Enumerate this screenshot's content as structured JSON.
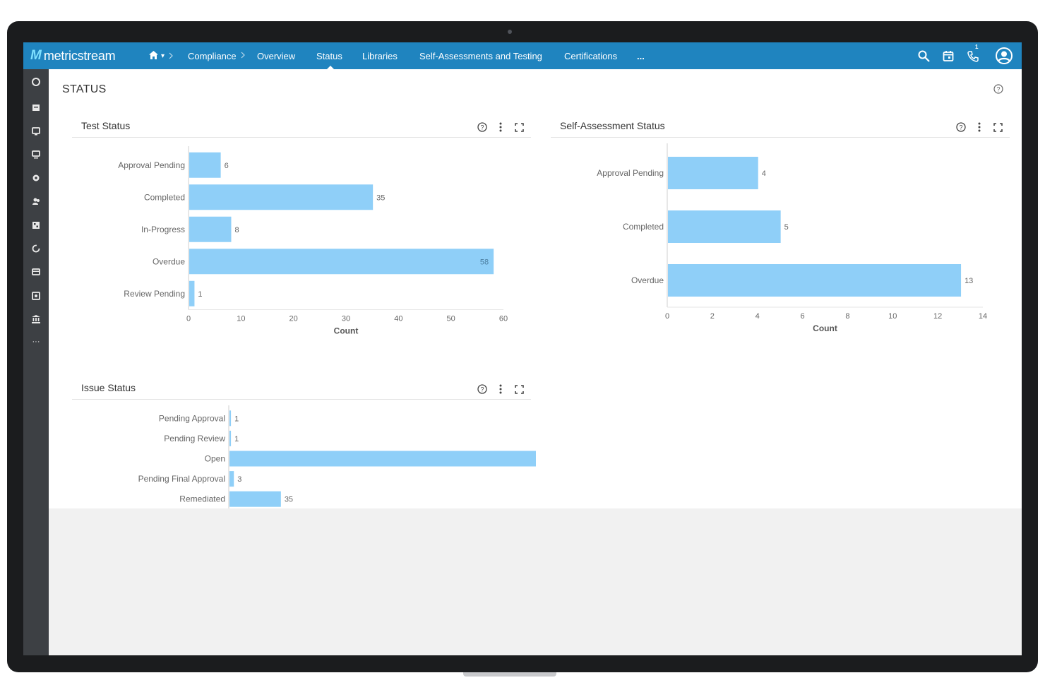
{
  "app": {
    "logo_text": "metricstream",
    "logo_mark": "M"
  },
  "nav": {
    "home_caret": "▾",
    "items": [
      {
        "label": "Compliance"
      },
      {
        "label": "Overview"
      },
      {
        "label": "Status"
      },
      {
        "label": "Libraries"
      },
      {
        "label": "Self-Assessments and Testing"
      },
      {
        "label": "Certifications"
      },
      {
        "label": "..."
      }
    ],
    "active": "Status",
    "notification_count": "1"
  },
  "page": {
    "title": "STATUS"
  },
  "panels": {
    "test_status": {
      "title": "Test Status"
    },
    "self_assessment": {
      "title": "Self-Assessment Status"
    },
    "issue_status": {
      "title": "Issue Status"
    }
  },
  "chart_data": [
    {
      "id": "test_status",
      "type": "bar",
      "orientation": "horizontal",
      "categories": [
        "Approval Pending",
        "Completed",
        "In-Progress",
        "Overdue",
        "Review Pending"
      ],
      "values": [
        6,
        35,
        8,
        58,
        1
      ],
      "xlabel": "Count",
      "xlim": [
        0,
        60
      ],
      "xticks": [
        0,
        10,
        20,
        30,
        40,
        50,
        60
      ],
      "color": "#8fcff8"
    },
    {
      "id": "self_assessment",
      "type": "bar",
      "orientation": "horizontal",
      "categories": [
        "Approval Pending",
        "Completed",
        "Overdue"
      ],
      "values": [
        4,
        5,
        13
      ],
      "xlabel": "Count",
      "xlim": [
        0,
        14
      ],
      "xticks": [
        0,
        2,
        4,
        6,
        8,
        10,
        12,
        14
      ],
      "color": "#8fcff8"
    },
    {
      "id": "issue_status",
      "type": "bar",
      "orientation": "horizontal",
      "categories": [
        "Pending Approval",
        "Pending Review",
        "Open",
        "Pending Final Approval",
        "Remediated"
      ],
      "values": [
        1,
        1,
        223,
        3,
        35
      ],
      "xlabel": "",
      "color": "#8fcff8"
    }
  ]
}
